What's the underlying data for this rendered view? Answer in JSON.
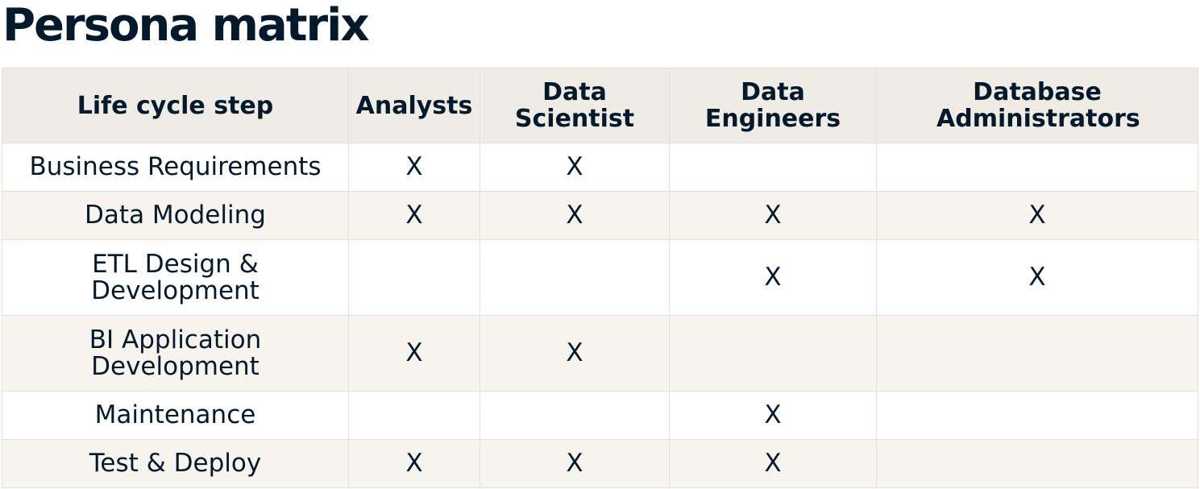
{
  "title": "Persona matrix",
  "table": {
    "headers": [
      "Life cycle step",
      "Analysts",
      "Data Scientist",
      "Data Engineers",
      "Database Administrators"
    ],
    "rows": [
      [
        "Business Requirements",
        "X",
        "X",
        "",
        ""
      ],
      [
        "Data Modeling",
        "X",
        "X",
        "X",
        "X"
      ],
      [
        "ETL Design & Development",
        "",
        "",
        "X",
        "X"
      ],
      [
        "BI Application Development",
        "X",
        "X",
        "",
        ""
      ],
      [
        "Maintenance",
        "",
        "",
        "X",
        ""
      ],
      [
        "Test & Deploy",
        "X",
        "X",
        "X",
        ""
      ]
    ]
  }
}
